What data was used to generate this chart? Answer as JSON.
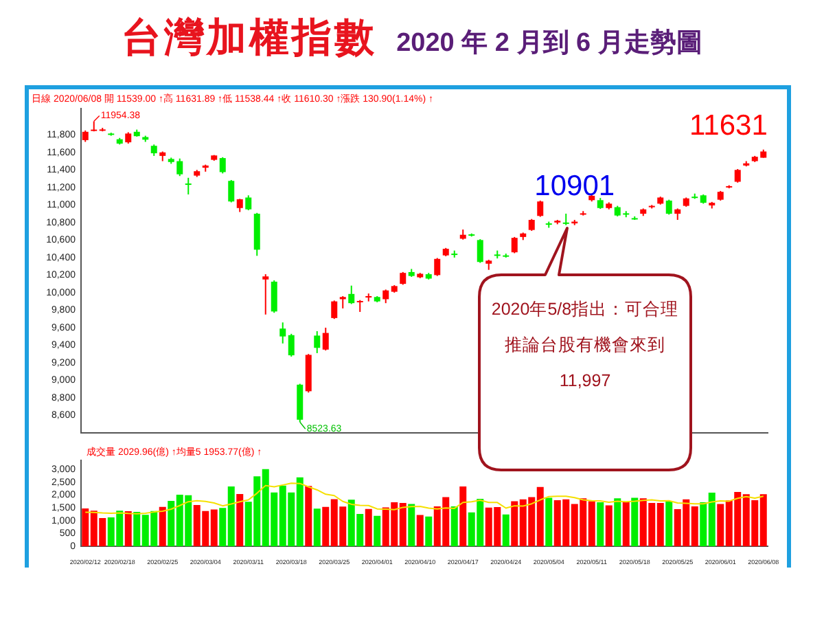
{
  "chart_data": [
    {
      "type": "candlestick",
      "title": "台灣加權指數",
      "subtitle": "2020 年 2 月到 6 月走勢圖",
      "tick_labels": "y",
      "categories": [
        "2020/02/12",
        null,
        null,
        null,
        "2020/02/18",
        null,
        null,
        null,
        null,
        "2020/02/25",
        null,
        null,
        null,
        null,
        "2020/03/04",
        null,
        null,
        null,
        null,
        "2020/03/11",
        null,
        null,
        null,
        null,
        "2020/03/18",
        null,
        null,
        null,
        null,
        "2020/03/25",
        null,
        null,
        null,
        null,
        "2020/04/01",
        null,
        null,
        null,
        null,
        "2020/04/10",
        null,
        null,
        null,
        null,
        "2020/04/17",
        null,
        null,
        null,
        null,
        "2020/04/24",
        null,
        null,
        null,
        null,
        "2020/05/04",
        null,
        null,
        null,
        null,
        "2020/05/11",
        null,
        null,
        null,
        null,
        "2020/05/18",
        null,
        null,
        null,
        null,
        "2020/05/25",
        null,
        null,
        null,
        null,
        "2020/06/01",
        null,
        null,
        null,
        null,
        "2020/06/08"
      ],
      "ohlc": [
        [
          11740,
          11850,
          11720,
          11835
        ],
        [
          11850,
          11954.38,
          11840,
          11860
        ],
        [
          11855,
          11880,
          11840,
          11862
        ],
        [
          11815,
          11825,
          11790,
          11805
        ],
        [
          11750,
          11765,
          11690,
          11700
        ],
        [
          11715,
          11830,
          11700,
          11815
        ],
        [
          11835,
          11860,
          11780,
          11785
        ],
        [
          11775,
          11790,
          11720,
          11745
        ],
        [
          11675,
          11690,
          11560,
          11590
        ],
        [
          11560,
          11610,
          11500,
          11600
        ],
        [
          11525,
          11540,
          11470,
          11490
        ],
        [
          11500,
          11530,
          11330,
          11350
        ],
        [
          11245,
          11310,
          11120,
          11235
        ],
        [
          11335,
          11400,
          11320,
          11385
        ],
        [
          11425,
          11460,
          11380,
          11450
        ],
        [
          11515,
          11570,
          11505,
          11565
        ],
        [
          11535,
          11545,
          11360,
          11375
        ],
        [
          11275,
          11285,
          11030,
          11040
        ],
        [
          10965,
          11070,
          10920,
          11065
        ],
        [
          11085,
          11110,
          10940,
          10950
        ],
        [
          10900,
          10910,
          10420,
          10490
        ],
        [
          10150,
          10210,
          9750,
          10185
        ],
        [
          10125,
          10140,
          9770,
          9785
        ],
        [
          9590,
          9660,
          9420,
          9500
        ],
        [
          9515,
          9530,
          9270,
          9285
        ],
        [
          8950,
          8960,
          8523.63,
          8550
        ],
        [
          8875,
          9300,
          8860,
          9290
        ],
        [
          9510,
          9560,
          9310,
          9370
        ],
        [
          9350,
          9600,
          9340,
          9540
        ],
        [
          9710,
          9910,
          9700,
          9900
        ],
        [
          9925,
          9960,
          9820,
          9950
        ],
        [
          9985,
          10080,
          9870,
          9880
        ],
        [
          9895,
          9915,
          9780,
          9905
        ],
        [
          9945,
          9990,
          9900,
          9960
        ],
        [
          9950,
          9960,
          9890,
          9900
        ],
        [
          9925,
          10035,
          9880,
          10025
        ],
        [
          10010,
          10085,
          10000,
          10075
        ],
        [
          10100,
          10235,
          10090,
          10225
        ],
        [
          10235,
          10270,
          10180,
          10190
        ],
        [
          10175,
          10225,
          10165,
          10215
        ],
        [
          10210,
          10225,
          10150,
          10160
        ],
        [
          10200,
          10395,
          10190,
          10385
        ],
        [
          10425,
          10510,
          10415,
          10500
        ],
        [
          10445,
          10480,
          10400,
          10430
        ],
        [
          10615,
          10720,
          10605,
          10660
        ],
        [
          10665,
          10675,
          10640,
          10650
        ],
        [
          10600,
          10610,
          10340,
          10350
        ],
        [
          10330,
          10375,
          10260,
          10365
        ],
        [
          10435,
          10480,
          10390,
          10430
        ],
        [
          10425,
          10445,
          10400,
          10415
        ],
        [
          10460,
          10635,
          10450,
          10625
        ],
        [
          10635,
          10685,
          10600,
          10675
        ],
        [
          10715,
          10840,
          10705,
          10830
        ],
        [
          10875,
          11050,
          10865,
          11040
        ],
        [
          10790,
          10810,
          10740,
          10780
        ],
        [
          10800,
          10830,
          10780,
          10820
        ],
        [
          10800,
          10901,
          10770,
          10790
        ],
        [
          10790,
          10830,
          10770,
          10810
        ],
        [
          10900,
          10930,
          10880,
          10905
        ],
        [
          11055,
          11120,
          11040,
          11105
        ],
        [
          11055,
          11080,
          10955,
          10965
        ],
        [
          10965,
          11030,
          10950,
          11015
        ],
        [
          10975,
          10990,
          10870,
          10880
        ],
        [
          10905,
          10930,
          10860,
          10895
        ],
        [
          10850,
          10870,
          10830,
          10840
        ],
        [
          10900,
          10960,
          10875,
          10950
        ],
        [
          10975,
          11000,
          10960,
          10990
        ],
        [
          11015,
          11095,
          11005,
          11085
        ],
        [
          11050,
          11060,
          10890,
          10900
        ],
        [
          10900,
          10960,
          10830,
          10950
        ],
        [
          10990,
          11085,
          10980,
          11075
        ],
        [
          11095,
          11130,
          11070,
          11085
        ],
        [
          11110,
          11120,
          11015,
          11025
        ],
        [
          10995,
          11035,
          10960,
          11025
        ],
        [
          11060,
          11160,
          11050,
          11150
        ],
        [
          11200,
          11225,
          11190,
          11215
        ],
        [
          11265,
          11410,
          11255,
          11400
        ],
        [
          11450,
          11500,
          11440,
          11475
        ],
        [
          11500,
          11560,
          11490,
          11550
        ],
        [
          11539,
          11631.89,
          11538.44,
          11610.3
        ]
      ],
      "colors": [
        "#ff0000",
        "#ff0000",
        "#ff0000",
        "#00ee00",
        "#00ee00",
        "#ff0000",
        "#00ee00",
        "#00ee00",
        "#00ee00",
        "#ff0000",
        "#00ee00",
        "#00ee00",
        "#00ee00",
        "#ff0000",
        "#ff0000",
        "#ff0000",
        "#00ee00",
        "#00ee00",
        "#ff0000",
        "#00ee00",
        "#00ee00",
        "#ff0000",
        "#00ee00",
        "#00ee00",
        "#00ee00",
        "#00ee00",
        "#ff0000",
        "#00ee00",
        "#ff0000",
        "#ff0000",
        "#ff0000",
        "#00ee00",
        "#ff0000",
        "#ff0000",
        "#00ee00",
        "#ff0000",
        "#ff0000",
        "#ff0000",
        "#00ee00",
        "#ff0000",
        "#00ee00",
        "#ff0000",
        "#ff0000",
        "#00ee00",
        "#ff0000",
        "#00ee00",
        "#00ee00",
        "#ff0000",
        "#00ee00",
        "#00ee00",
        "#ff0000",
        "#ff0000",
        "#ff0000",
        "#ff0000",
        "#00ee00",
        "#ff0000",
        "#00ee00",
        "#ff0000",
        "#ff0000",
        "#ff0000",
        "#00ee00",
        "#ff0000",
        "#00ee00",
        "#00ee00",
        "#00ee00",
        "#ff0000",
        "#ff0000",
        "#ff0000",
        "#00ee00",
        "#ff0000",
        "#ff0000",
        "#00ee00",
        "#00ee00",
        "#ff0000",
        "#ff0000",
        "#ff0000",
        "#ff0000",
        "#ff0000",
        "#ff0000",
        "#ff0000"
      ],
      "ylim": [
        8400,
        12100
      ],
      "yticks": [
        {
          "value": 8600,
          "label": "8,600"
        },
        {
          "value": 8800,
          "label": "8,800"
        },
        {
          "value": 9000,
          "label": "9,000"
        },
        {
          "value": 9200,
          "label": "9,200"
        },
        {
          "value": 9400,
          "label": "9,400"
        },
        {
          "value": 9600,
          "label": "9,600"
        },
        {
          "value": 9800,
          "label": "9,800"
        },
        {
          "value": 10000,
          "label": "10,000"
        },
        {
          "value": 10200,
          "label": "10,200"
        },
        {
          "value": 10400,
          "label": "10,400"
        },
        {
          "value": 10600,
          "label": "10,600"
        },
        {
          "value": 10800,
          "label": "10,800"
        },
        {
          "value": 11000,
          "label": "11,000"
        },
        {
          "value": 11200,
          "label": "11,200"
        },
        {
          "value": 11400,
          "label": "11,400"
        },
        {
          "value": 11600,
          "label": "11,600"
        },
        {
          "value": 11800,
          "label": "11,800"
        }
      ],
      "annotations": [
        "日線 2020/06/08 開 11539.00 ↑高 11631.89 ↑低 11538.44 ↑收 11610.30 ↑漲跌 130.90(1.14%) ↑",
        "2020年5/8指出：可合理推論台股有機會來到11,997",
        "11954.38",
        "8523.63",
        "10901",
        "11631"
      ]
    },
    {
      "type": "bar",
      "categories": [
        "2020/02/12",
        null,
        null,
        null,
        "2020/02/18",
        null,
        null,
        null,
        null,
        "2020/02/25",
        null,
        null,
        null,
        null,
        "2020/03/04",
        null,
        null,
        null,
        null,
        "2020/03/11",
        null,
        null,
        null,
        null,
        "2020/03/18",
        null,
        null,
        null,
        null,
        "2020/03/25",
        null,
        null,
        null,
        null,
        "2020/04/01",
        null,
        null,
        null,
        null,
        "2020/04/10",
        null,
        null,
        null,
        null,
        "2020/04/17",
        null,
        null,
        null,
        null,
        "2020/04/24",
        null,
        null,
        null,
        null,
        "2020/05/04",
        null,
        null,
        null,
        null,
        "2020/05/11",
        null,
        null,
        null,
        null,
        "2020/05/18",
        null,
        null,
        null,
        null,
        "2020/05/25",
        null,
        null,
        null,
        null,
        "2020/06/01",
        null,
        null,
        null,
        null,
        "2020/06/08"
      ],
      "series": [
        {
          "type": "bar",
          "values": [
            1480,
            1390,
            1100,
            1130,
            1390,
            1370,
            1340,
            1230,
            1380,
            1540,
            1770,
            2010,
            1990,
            1610,
            1380,
            1440,
            1500,
            2330,
            2040,
            1740,
            2730,
            3010,
            2100,
            2370,
            2100,
            2690,
            2350,
            1470,
            1540,
            1840,
            1550,
            1820,
            1260,
            1460,
            1190,
            1520,
            1720,
            1690,
            1650,
            1220,
            1160,
            1560,
            1920,
            1560,
            2330,
            1320,
            1850,
            1510,
            1530,
            1240,
            1760,
            1830,
            1920,
            2310,
            1890,
            1800,
            1830,
            1650,
            1870,
            1760,
            1720,
            1600,
            1870,
            1730,
            1890,
            1870,
            1690,
            1690,
            1760,
            1450,
            1830,
            1560,
            1720,
            2090,
            1650,
            1790,
            2120,
            2030,
            1800,
            2030
          ],
          "colors": [
            "#ff0000",
            "#ff0000",
            "#ff0000",
            "#00ee00",
            "#00ee00",
            "#ff0000",
            "#00ee00",
            "#00ee00",
            "#00ee00",
            "#ff0000",
            "#00ee00",
            "#00ee00",
            "#00ee00",
            "#ff0000",
            "#ff0000",
            "#ff0000",
            "#00ee00",
            "#00ee00",
            "#ff0000",
            "#00ee00",
            "#00ee00",
            "#00ee00",
            "#00ee00",
            "#00ee00",
            "#00ee00",
            "#00ee00",
            "#ff0000",
            "#00ee00",
            "#ff0000",
            "#ff0000",
            "#ff0000",
            "#00ee00",
            "#00ee00",
            "#ff0000",
            "#00ee00",
            "#ff0000",
            "#ff0000",
            "#ff0000",
            "#00ee00",
            "#ff0000",
            "#00ee00",
            "#ff0000",
            "#ff0000",
            "#00ee00",
            "#ff0000",
            "#00ee00",
            "#00ee00",
            "#ff0000",
            "#ff0000",
            "#00ee00",
            "#ff0000",
            "#ff0000",
            "#ff0000",
            "#ff0000",
            "#00ee00",
            "#ff0000",
            "#ff0000",
            "#ff0000",
            "#ff0000",
            "#ff0000",
            "#00ee00",
            "#ff0000",
            "#00ee00",
            "#ff0000",
            "#00ee00",
            "#ff0000",
            "#ff0000",
            "#ff0000",
            "#00ee00",
            "#ff0000",
            "#ff0000",
            "#ff0000",
            "#00ee00",
            "#00ee00",
            "#ff0000",
            "#ff0000",
            "#ff0000",
            "#ff0000",
            "#ff0000",
            "#ff0000"
          ]
        },
        {
          "type": "line",
          "color": "#f5e000",
          "marker": "none",
          "values": [
            1330,
            1320,
            1300,
            1290,
            1300,
            1280,
            1270,
            1290,
            1340,
            1370,
            1450,
            1590,
            1740,
            1780,
            1750,
            1690,
            1580,
            1650,
            1740,
            1810,
            2070,
            2370,
            2320,
            2390,
            2460,
            2450,
            2320,
            2200,
            2030,
            1980,
            1750,
            1640,
            1600,
            1590,
            1460,
            1450,
            1430,
            1520,
            1550,
            1560,
            1490,
            1460,
            1500,
            1480,
            1710,
            1740,
            1800,
            1710,
            1710,
            1490,
            1580,
            1570,
            1660,
            1810,
            1940,
            1950,
            1950,
            1900,
            1810,
            1780,
            1770,
            1720,
            1760,
            1740,
            1760,
            1790,
            1810,
            1770,
            1780,
            1690,
            1680,
            1660,
            1660,
            1730,
            1770,
            1760,
            1870,
            1940,
            1880,
            1950
          ]
        }
      ],
      "ylim": [
        0,
        3350
      ],
      "yticks": [
        0,
        500,
        {
          "value": 1000,
          "label": "1,000"
        },
        {
          "value": 1500,
          "label": "1,500"
        },
        {
          "value": 2000,
          "label": "2,000"
        },
        {
          "value": 2500,
          "label": "2,500"
        },
        {
          "value": 3000,
          "label": "3,000"
        }
      ],
      "annotations": [
        "成交量 2029.96(億) ↑均量5 1953.77(億) ↑"
      ]
    }
  ]
}
